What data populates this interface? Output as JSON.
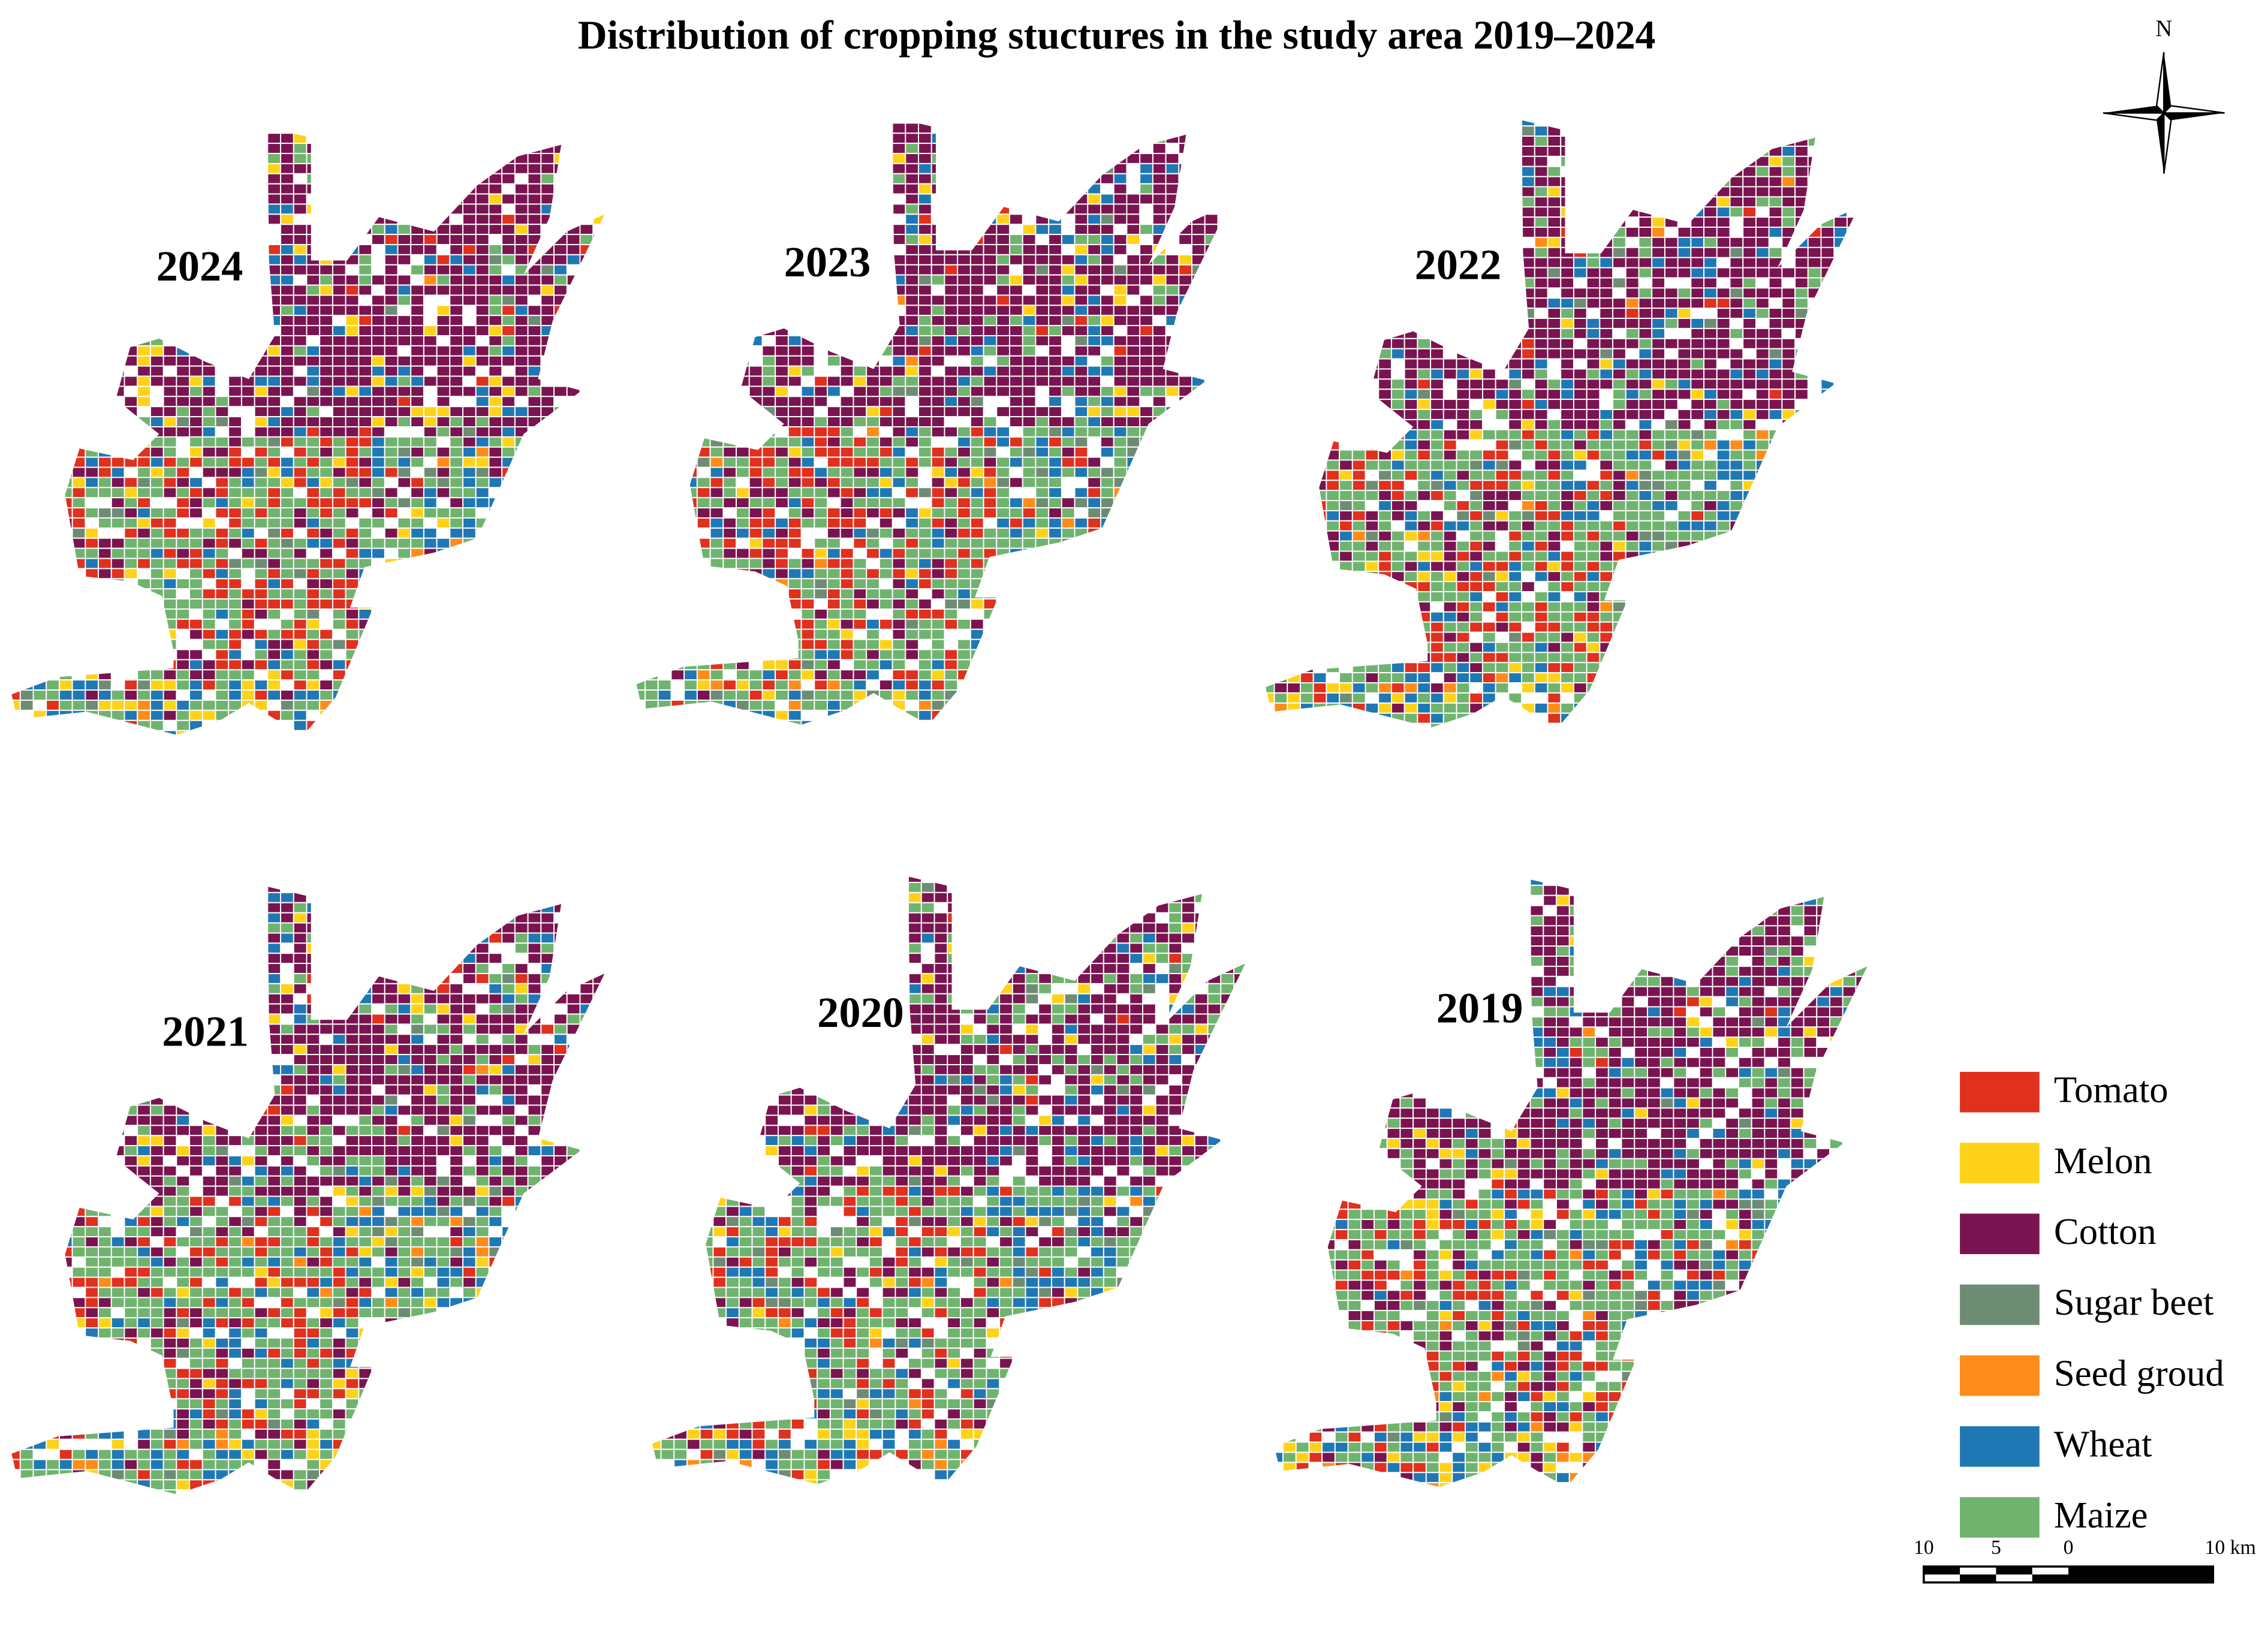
{
  "title": "Distribution of cropping stuctures in the study area 2019–2024",
  "maps": [
    {
      "year": "2024"
    },
    {
      "year": "2023"
    },
    {
      "year": "2022"
    },
    {
      "year": "2021"
    },
    {
      "year": "2020"
    },
    {
      "year": "2019"
    }
  ],
  "legend": [
    {
      "label": "Tomato",
      "color": "#e0301e"
    },
    {
      "label": "Melon",
      "color": "#ffd21a"
    },
    {
      "label": "Cotton",
      "color": "#7a1450"
    },
    {
      "label": "Sugar beet",
      "color": "#6e8c74"
    },
    {
      "label": "Seed groud",
      "color": "#ff8c1a"
    },
    {
      "label": "Wheat",
      "color": "#1f78b4"
    },
    {
      "label": "Maize",
      "color": "#6fb36f"
    }
  ],
  "north_arrow": {
    "label": "N"
  },
  "scale_bar": {
    "labels": [
      "10",
      "5",
      "0",
      "10 km"
    ]
  }
}
